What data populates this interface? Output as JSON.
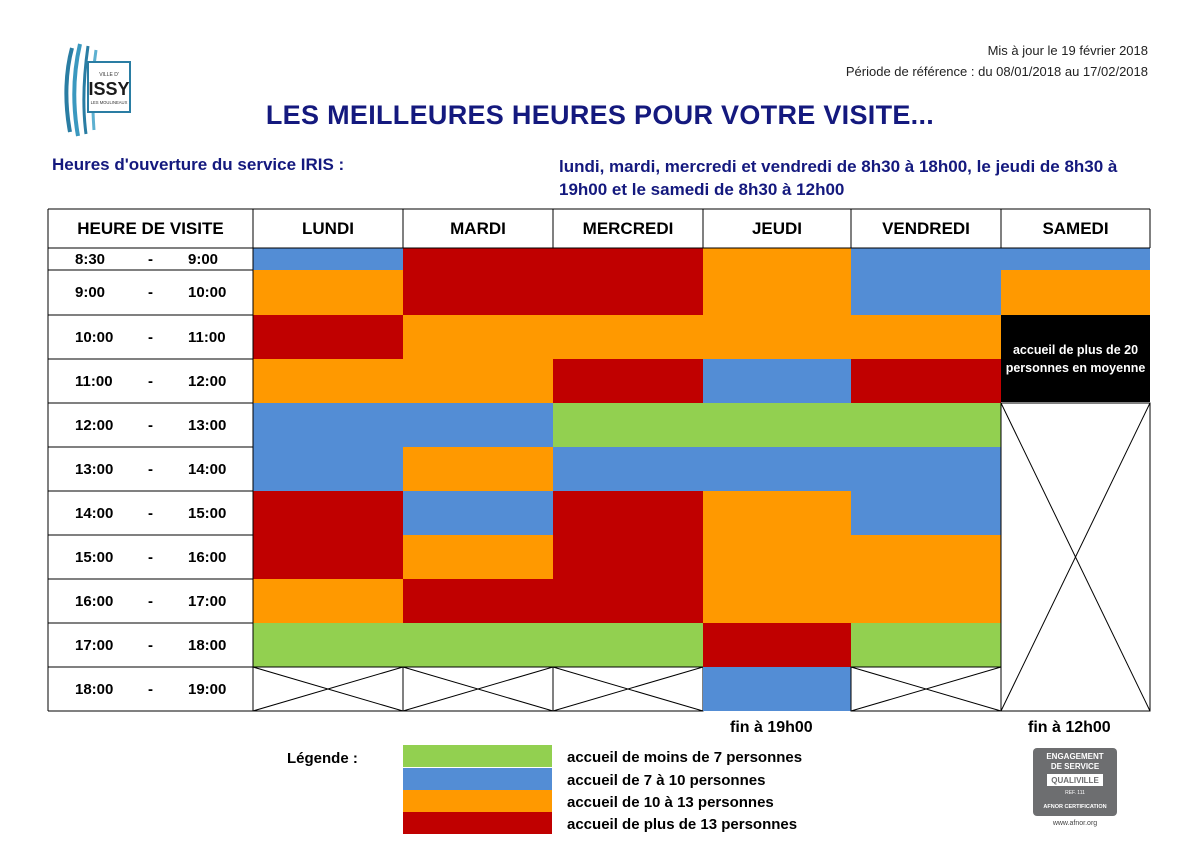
{
  "header": {
    "updated": "Mis à jour le 19 février 2018",
    "reference_period": "Période de référence : du 08/01/2018 au 17/02/2018",
    "title": "LES MEILLEURES HEURES POUR VOTRE VISITE...",
    "hours_label": "Heures d'ouverture du service IRIS :",
    "hours_text": "lundi, mardi, mercredi et vendredi de 8h30 à 18h00, le jeudi de 8h30 à 19h00 et le samedi de 8h30 à 12h00"
  },
  "logo": {
    "text_top": "VILLE D'",
    "text_main": "ISSY",
    "text_sub": "LES MOULINEAUX"
  },
  "colors": {
    "low": "#92d050",
    "medium": "#538dd5",
    "high": "#ff9900",
    "very_high": "#c00000",
    "title": "#14197e"
  },
  "table": {
    "time_header": "HEURE DE VISITE",
    "days": [
      "LUNDI",
      "MARDI",
      "MERCREDI",
      "JEUDI",
      "VENDREDI",
      "SAMEDI"
    ],
    "times": [
      {
        "start": "8:30",
        "sep": "-",
        "end": "9:00"
      },
      {
        "start": "9:00",
        "sep": "-",
        "end": "10:00"
      },
      {
        "start": "10:00",
        "sep": "-",
        "end": "11:00"
      },
      {
        "start": "11:00",
        "sep": "-",
        "end": "12:00"
      },
      {
        "start": "12:00",
        "sep": "-",
        "end": "13:00"
      },
      {
        "start": "13:00",
        "sep": "-",
        "end": "14:00"
      },
      {
        "start": "14:00",
        "sep": "-",
        "end": "15:00"
      },
      {
        "start": "15:00",
        "sep": "-",
        "end": "16:00"
      },
      {
        "start": "16:00",
        "sep": "-",
        "end": "17:00"
      },
      {
        "start": "17:00",
        "sep": "-",
        "end": "18:00"
      },
      {
        "start": "18:00",
        "sep": "-",
        "end": "19:00"
      }
    ],
    "schedule": {
      "LUNDI": [
        "medium",
        "high",
        "very_high",
        "high",
        "medium",
        "medium",
        "very_high",
        "very_high",
        "high",
        "low",
        "closed"
      ],
      "MARDI": [
        "very_high",
        "very_high",
        "high",
        "high",
        "medium",
        "high",
        "medium",
        "high",
        "very_high",
        "low",
        "closed"
      ],
      "MERCREDI": [
        "very_high",
        "very_high",
        "high",
        "very_high",
        "low",
        "medium",
        "very_high",
        "very_high",
        "very_high",
        "low",
        "closed"
      ],
      "JEUDI": [
        "high",
        "high",
        "high",
        "medium",
        "low",
        "medium",
        "high",
        "high",
        "high",
        "very_high",
        "medium"
      ],
      "VENDREDI": [
        "medium",
        "medium",
        "high",
        "very_high",
        "low",
        "medium",
        "medium",
        "high",
        "high",
        "low",
        "closed"
      ],
      "SAMEDI": [
        "medium",
        "high",
        "note",
        "note",
        "closed",
        "closed",
        "closed",
        "closed",
        "closed",
        "closed",
        "closed"
      ]
    },
    "saturday_note": "accueil de plus de 20 personnes en moyenne",
    "thursday_end": "fin à 19h00",
    "saturday_end": "fin à 12h00"
  },
  "legend": {
    "title": "Légende :",
    "items": [
      {
        "level": "low",
        "label": "accueil de moins de 7 personnes"
      },
      {
        "level": "medium",
        "label": "accueil de 7 à 10 personnes"
      },
      {
        "level": "high",
        "label": "accueil de 10 à 13 personnes"
      },
      {
        "level": "very_high",
        "label": "accueil de plus de 13 personnes"
      }
    ]
  },
  "badge": {
    "line1": "ENGAGEMENT",
    "line2": "DE SERVICE",
    "line3": "QUALIVILLE",
    "line4": "REF. 111",
    "line5": "AFNOR CERTIFICATION",
    "url": "www.afnor.org"
  }
}
